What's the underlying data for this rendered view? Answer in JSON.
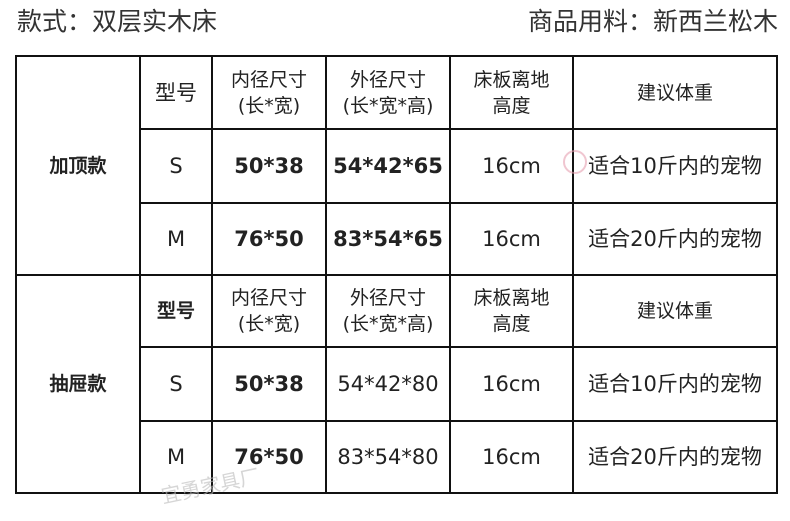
{
  "header": {
    "style": "款式：双层实木床",
    "material": "商品用料：新西兰松木"
  },
  "columns": [
    "型号",
    "内径尺寸\n(长*宽)",
    "外径尺寸\n(长*宽*高)",
    "床板离地\n高度",
    "建议体重"
  ],
  "col_labels": {
    "model": "型号",
    "inner": "内径尺寸",
    "inner_unit": "(长*宽)",
    "outer": "外径尺寸",
    "outer_unit": "(长*宽*高)",
    "height": "床板离地",
    "height2": "高度",
    "weight": "建议体重"
  },
  "groups": [
    {
      "name": "加顶款",
      "rows": [
        {
          "model": "S",
          "inner": "50*38",
          "outer": "54*42*65",
          "height": "16cm",
          "weight": "适合10斤内的宠物"
        },
        {
          "model": "M",
          "inner": "76*50",
          "outer": "83*54*65",
          "height": "16cm",
          "weight": "适合20斤内的宠物"
        }
      ]
    },
    {
      "name": "抽屉款",
      "rows": [
        {
          "model": "S",
          "inner": "50*38",
          "outer": "54*42*80",
          "height": "16cm",
          "weight": "适合10斤内的宠物"
        },
        {
          "model": "M",
          "inner": "76*50",
          "outer": "83*54*80",
          "height": "16cm",
          "weight": "适合20斤内的宠物"
        }
      ]
    }
  ],
  "watermark": "宜勇家具厂"
}
